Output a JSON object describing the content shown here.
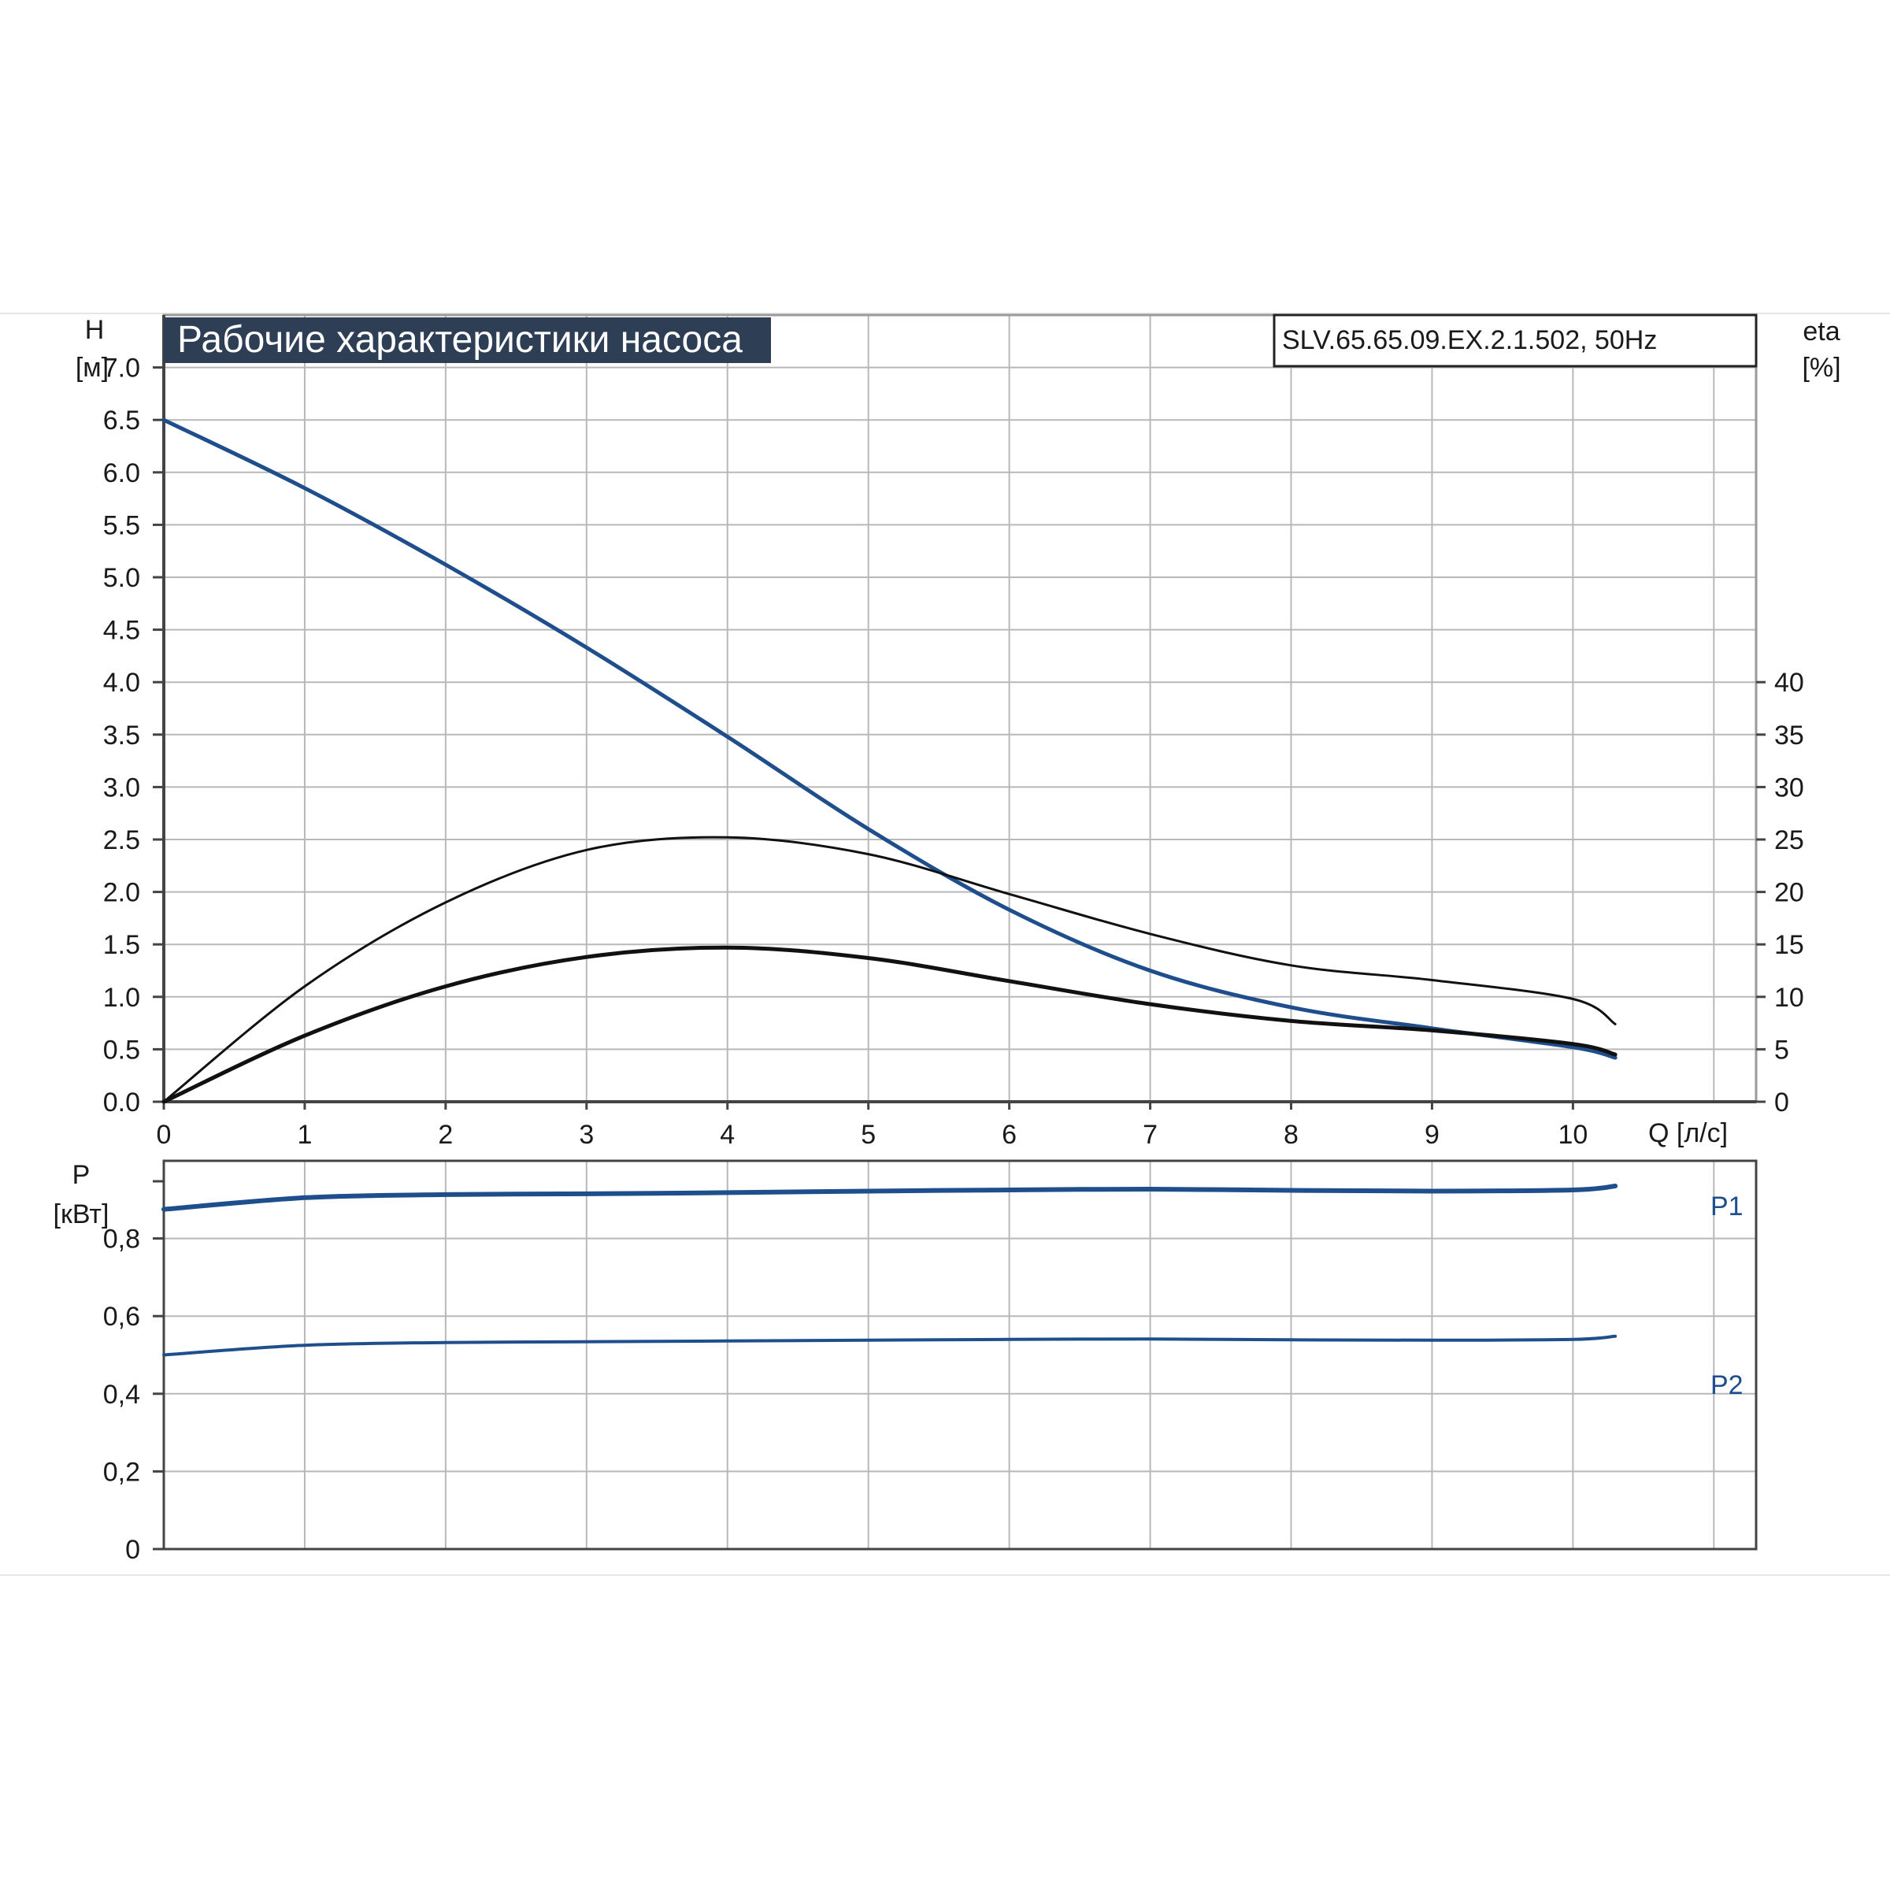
{
  "chart_data": [
    {
      "type": "line",
      "title": "Рабочие характеристики насоса",
      "model": "SLV.65.65.09.EX.2.1.502, 50Hz",
      "xlabel": "Q [л/с]",
      "ylabel": "H",
      "ylabel_unit": "[м]",
      "y2label": "eta",
      "y2label_unit": "[%]",
      "xlim": [
        0,
        11.3
      ],
      "ylim": [
        0,
        7.5
      ],
      "y2lim": [
        0,
        75
      ],
      "x_ticks": [
        "0",
        "1",
        "2",
        "3",
        "4",
        "5",
        "6",
        "7",
        "8",
        "9",
        "10"
      ],
      "y_ticks": [
        "0.0",
        "0.5",
        "1.0",
        "1.5",
        "2.0",
        "2.5",
        "3.0",
        "3.5",
        "4.0",
        "4.5",
        "5.0",
        "5.5",
        "6.0",
        "6.5",
        "7.0"
      ],
      "y2_ticks": [
        "0",
        "5",
        "10",
        "15",
        "20",
        "25",
        "30",
        "35",
        "40"
      ],
      "grid": true,
      "series": [
        {
          "color": "#1f4e8c",
          "axis": "left",
          "x": [
            0,
            1,
            2,
            3,
            4,
            5,
            6,
            7,
            8,
            9,
            10,
            10.3
          ],
          "y": [
            6.5,
            5.85,
            5.12,
            4.33,
            3.48,
            2.6,
            1.83,
            1.25,
            0.9,
            0.7,
            0.52,
            0.42
          ]
        },
        {
          "color": "#111111",
          "axis": "right",
          "x": [
            0,
            1,
            2,
            3,
            4,
            5,
            6,
            7,
            8,
            9,
            10,
            10.3
          ],
          "y": [
            0,
            11,
            19,
            24,
            25.2,
            23.6,
            19.8,
            16,
            13,
            11.6,
            9.8,
            7.4
          ]
        },
        {
          "color": "#111111",
          "axis": "left",
          "x": [
            0,
            1,
            2,
            3,
            4,
            5,
            6,
            7,
            8,
            9,
            10,
            10.3
          ],
          "y": [
            0,
            0.63,
            1.1,
            1.38,
            1.47,
            1.37,
            1.15,
            0.93,
            0.77,
            0.68,
            0.55,
            0.45
          ]
        }
      ]
    },
    {
      "type": "line",
      "xlabel": "",
      "ylabel": "P",
      "ylabel_unit": "[кВт]",
      "xlim": [
        0,
        11.3
      ],
      "ylim": [
        0,
        1.0
      ],
      "y_ticks": [
        "0",
        "0,2",
        "0,4",
        "0,6",
        "0,8"
      ],
      "grid": true,
      "series": [
        {
          "name": "P1",
          "color": "#1f4e8c",
          "x": [
            0,
            1,
            2,
            3,
            4,
            5,
            6,
            7,
            8,
            9,
            10,
            10.3
          ],
          "y": [
            0.875,
            0.905,
            0.913,
            0.915,
            0.918,
            0.922,
            0.925,
            0.927,
            0.924,
            0.922,
            0.925,
            0.935
          ]
        },
        {
          "name": "P2",
          "color": "#1f4e8c",
          "x": [
            0,
            1,
            2,
            3,
            4,
            5,
            6,
            7,
            8,
            9,
            10,
            10.3
          ],
          "y": [
            0.5,
            0.525,
            0.532,
            0.534,
            0.536,
            0.538,
            0.54,
            0.541,
            0.539,
            0.538,
            0.54,
            0.548
          ]
        }
      ]
    }
  ]
}
